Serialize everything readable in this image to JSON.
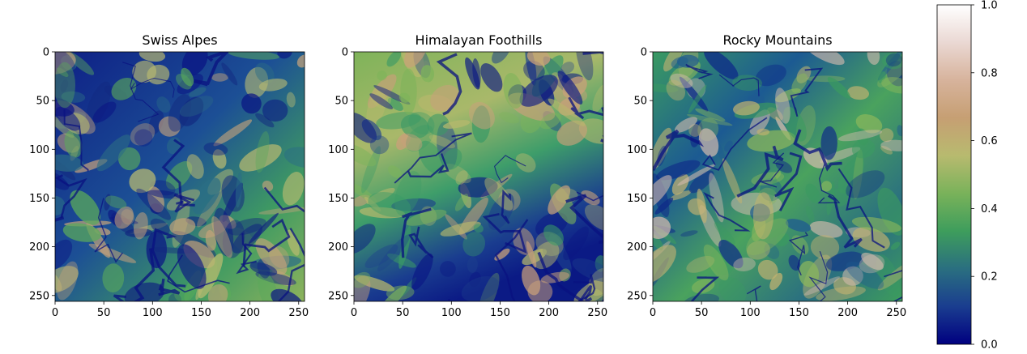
{
  "colormap": [
    "#000080",
    "#1a3d8f",
    "#2a6f80",
    "#3e9d5c",
    "#79b25a",
    "#b8ba6f",
    "#c69f73",
    "#d7b39c",
    "#ead8d3",
    "#ffffff"
  ],
  "chart_data": [
    {
      "type": "heatmap",
      "title": "Swiss Alpes",
      "xlabel": "",
      "ylabel": "",
      "xlim": [
        0,
        256
      ],
      "ylim": [
        256,
        0
      ],
      "xticks": [
        0,
        50,
        100,
        150,
        200,
        250
      ],
      "yticks": [
        0,
        50,
        100,
        150,
        200,
        250
      ],
      "value_range": [
        0.0,
        1.0
      ],
      "grid": false,
      "description": ""
    },
    {
      "type": "heatmap",
      "title": "Himalayan Foothills",
      "xlabel": "",
      "ylabel": "",
      "xlim": [
        0,
        256
      ],
      "ylim": [
        256,
        0
      ],
      "xticks": [
        0,
        50,
        100,
        150,
        200,
        250
      ],
      "yticks": [
        0,
        50,
        100,
        150,
        200,
        250
      ],
      "value_range": [
        0.0,
        1.0
      ],
      "grid": false
    },
    {
      "type": "heatmap",
      "title": "Rocky Mountains",
      "xlabel": "",
      "ylabel": "",
      "xlim": [
        0,
        256
      ],
      "ylim": [
        256,
        0
      ],
      "xticks": [
        0,
        50,
        100,
        150,
        200,
        250
      ],
      "yticks": [
        0,
        50,
        100,
        150,
        200,
        250
      ],
      "value_range": [
        0.0,
        1.0
      ],
      "grid": false
    }
  ],
  "colorbar": {
    "range": [
      0.0,
      1.0
    ],
    "ticks": [
      "0.0",
      "0.2",
      "0.4",
      "0.6",
      "0.8",
      "1.0"
    ]
  }
}
